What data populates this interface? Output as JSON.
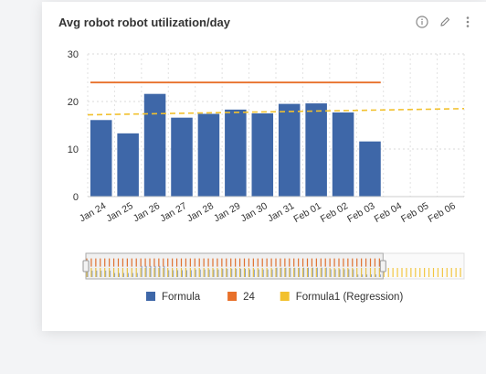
{
  "widget": {
    "title": "Avg robot robot utilization/day",
    "info_icon": "info-icon",
    "edit_icon": "pencil-icon",
    "more_icon": "kebab-menu-icon"
  },
  "chart_data": {
    "type": "bar",
    "title": "Avg robot robot utilization/day",
    "categories": [
      "Jan 24",
      "Jan 25",
      "Jan 26",
      "Jan 27",
      "Jan 28",
      "Jan 29",
      "Jan 30",
      "Jan 31",
      "Feb 01",
      "Feb 02",
      "Feb 03",
      "Feb 04",
      "Feb 05",
      "Feb 06"
    ],
    "series": [
      {
        "name": "Formula",
        "kind": "bar",
        "color": "#3e67a8",
        "values": [
          16.1,
          13.3,
          21.6,
          16.6,
          17.4,
          18.3,
          17.5,
          19.5,
          19.6,
          17.7,
          11.6,
          null,
          null,
          null
        ]
      },
      {
        "name": "24",
        "kind": "line",
        "color": "#e8702a",
        "values": [
          24,
          24,
          24,
          24,
          24,
          24,
          24,
          24,
          24,
          24,
          24,
          null,
          null,
          null
        ]
      },
      {
        "name": "Formula1 (Regression)",
        "kind": "dashed-line",
        "color": "#f2c12e",
        "start": 17.2,
        "end": 18.5
      }
    ],
    "y_ticks": [
      0,
      10,
      20,
      30
    ],
    "ylim": [
      0,
      30
    ],
    "grid": true,
    "legend_position": "bottom"
  }
}
